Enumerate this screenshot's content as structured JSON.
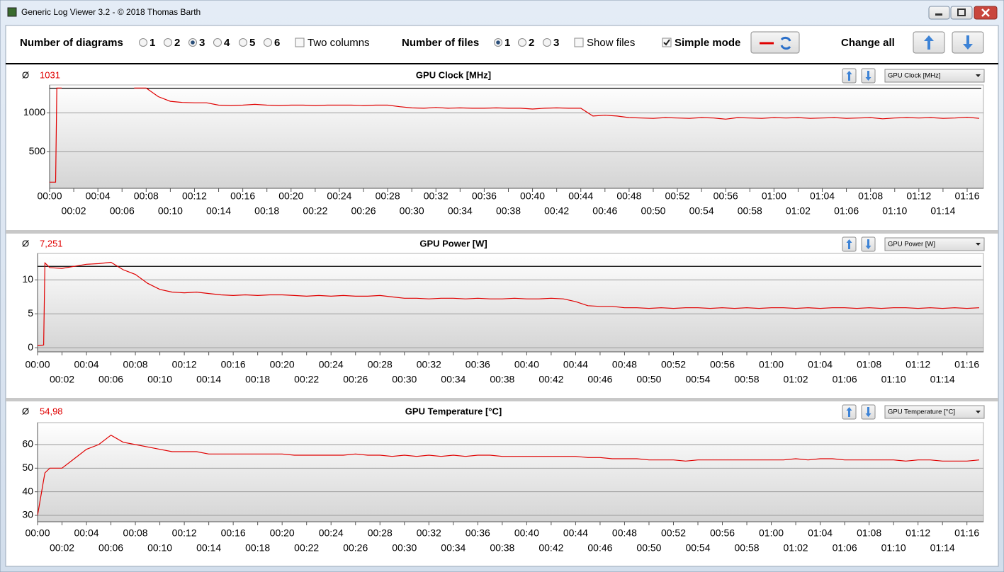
{
  "window": {
    "title": "Generic Log Viewer 3.2 - © 2018 Thomas Barth"
  },
  "toolbar": {
    "diagrams": {
      "label": "Number of diagrams",
      "options": [
        "1",
        "2",
        "3",
        "4",
        "5",
        "6"
      ],
      "selected": 2
    },
    "two_columns": {
      "label": "Two columns",
      "checked": false
    },
    "files": {
      "label": "Number of files",
      "options": [
        "1",
        "2",
        "3"
      ],
      "selected": 0
    },
    "show_files": {
      "label": "Show files",
      "checked": false
    },
    "simple_mode": {
      "label": "Simple mode",
      "checked": true
    },
    "change_all": "Change all"
  },
  "chart_data": [
    {
      "type": "line",
      "title": "GPU Clock [MHz]",
      "average_symbol": "Ø",
      "average": "1031",
      "selector": "GPU Clock [MHz]",
      "color": "#e00000",
      "x": [
        0,
        0.5,
        0.6,
        1,
        2,
        3,
        4,
        5,
        6,
        7,
        8,
        9,
        10,
        11,
        12,
        13,
        14,
        15,
        16,
        17,
        18,
        19,
        20,
        21,
        22,
        23,
        24,
        25,
        26,
        27,
        28,
        29,
        30,
        31,
        32,
        33,
        34,
        35,
        36,
        37,
        38,
        39,
        40,
        41,
        42,
        43,
        44,
        45,
        46,
        47,
        48,
        49,
        50,
        51,
        52,
        53,
        54,
        55,
        56,
        57,
        58,
        59,
        60,
        61,
        62,
        63,
        64,
        65,
        66,
        67,
        68,
        69,
        70,
        71,
        72,
        73,
        74,
        75,
        76,
        77
      ],
      "values": [
        109,
        109,
        1320,
        1320,
        null,
        null,
        null,
        null,
        null,
        1320,
        1320,
        1210,
        1150,
        1135,
        1130,
        1130,
        1100,
        1095,
        1100,
        1110,
        1100,
        1095,
        1100,
        1100,
        1095,
        1100,
        1100,
        1100,
        1095,
        1100,
        1100,
        1080,
        1065,
        1060,
        1070,
        1060,
        1065,
        1060,
        1060,
        1065,
        1060,
        1060,
        1050,
        1060,
        1065,
        1060,
        1060,
        960,
        970,
        960,
        940,
        935,
        930,
        940,
        935,
        930,
        940,
        935,
        920,
        940,
        935,
        930,
        940,
        935,
        940,
        930,
        935,
        940,
        930,
        935,
        940,
        925,
        935,
        940,
        935,
        940,
        930,
        935,
        945,
        930
      ],
      "reference_line": {
        "value": 1318,
        "color": "#000000"
      },
      "xlim": [
        0,
        77.35
      ],
      "ylim": [
        30,
        1360
      ],
      "yticks": [
        500,
        1000
      ],
      "grid": true,
      "xticks": [
        {
          "value": 0,
          "label": "00:00"
        },
        {
          "value": 2,
          "label": "00:02"
        },
        {
          "value": 4,
          "label": "00:04"
        },
        {
          "value": 6,
          "label": "00:06"
        },
        {
          "value": 8,
          "label": "00:08"
        },
        {
          "value": 10,
          "label": "00:10"
        },
        {
          "value": 12,
          "label": "00:12"
        },
        {
          "value": 14,
          "label": "00:14"
        },
        {
          "value": 16,
          "label": "00:16"
        },
        {
          "value": 18,
          "label": "00:18"
        },
        {
          "value": 20,
          "label": "00:20"
        },
        {
          "value": 22,
          "label": "00:22"
        },
        {
          "value": 24,
          "label": "00:24"
        },
        {
          "value": 26,
          "label": "00:26"
        },
        {
          "value": 28,
          "label": "00:28"
        },
        {
          "value": 30,
          "label": "00:30"
        },
        {
          "value": 32,
          "label": "00:32"
        },
        {
          "value": 34,
          "label": "00:34"
        },
        {
          "value": 36,
          "label": "00:36"
        },
        {
          "value": 38,
          "label": "00:38"
        },
        {
          "value": 40,
          "label": "00:40"
        },
        {
          "value": 42,
          "label": "00:42"
        },
        {
          "value": 44,
          "label": "00:44"
        },
        {
          "value": 46,
          "label": "00:46"
        },
        {
          "value": 48,
          "label": "00:48"
        },
        {
          "value": 50,
          "label": "00:50"
        },
        {
          "value": 52,
          "label": "00:52"
        },
        {
          "value": 54,
          "label": "00:54"
        },
        {
          "value": 56,
          "label": "00:56"
        },
        {
          "value": 58,
          "label": "00:58"
        },
        {
          "value": 60,
          "label": "01:00"
        },
        {
          "value": 62,
          "label": "01:02"
        },
        {
          "value": 64,
          "label": "01:04"
        },
        {
          "value": 66,
          "label": "01:06"
        },
        {
          "value": 68,
          "label": "01:08"
        },
        {
          "value": 70,
          "label": "01:10"
        },
        {
          "value": 72,
          "label": "01:12"
        },
        {
          "value": 74,
          "label": "01:14"
        },
        {
          "value": 76,
          "label": "01:16"
        }
      ]
    },
    {
      "type": "line",
      "title": "GPU Power [W]",
      "average_symbol": "Ø",
      "average": "7,251",
      "selector": "GPU Power [W]",
      "color": "#e00000",
      "x": [
        0,
        0.5,
        0.6,
        1,
        2,
        3,
        4,
        5,
        6,
        7,
        8,
        9,
        10,
        11,
        12,
        13,
        14,
        15,
        16,
        17,
        18,
        19,
        20,
        21,
        22,
        23,
        24,
        25,
        26,
        27,
        28,
        29,
        30,
        31,
        32,
        33,
        34,
        35,
        36,
        37,
        38,
        39,
        40,
        41,
        42,
        43,
        44,
        45,
        46,
        47,
        48,
        49,
        50,
        51,
        52,
        53,
        54,
        55,
        56,
        57,
        58,
        59,
        60,
        61,
        62,
        63,
        64,
        65,
        66,
        67,
        68,
        69,
        70,
        71,
        72,
        73,
        74,
        75,
        76,
        77
      ],
      "values": [
        0.3,
        0.4,
        12.5,
        11.8,
        11.7,
        12,
        12.3,
        12.4,
        12.6,
        11.5,
        10.8,
        9.5,
        8.6,
        8.2,
        8.1,
        8.2,
        8.0,
        7.8,
        7.7,
        7.8,
        7.7,
        7.8,
        7.8,
        7.7,
        7.6,
        7.7,
        7.6,
        7.7,
        7.6,
        7.6,
        7.7,
        7.5,
        7.3,
        7.3,
        7.2,
        7.3,
        7.3,
        7.2,
        7.3,
        7.2,
        7.2,
        7.3,
        7.2,
        7.2,
        7.3,
        7.2,
        6.8,
        6.2,
        6.1,
        6.1,
        5.9,
        5.9,
        5.8,
        5.9,
        5.8,
        5.9,
        5.9,
        5.8,
        5.9,
        5.8,
        5.9,
        5.8,
        5.9,
        5.9,
        5.8,
        5.9,
        5.8,
        5.9,
        5.9,
        5.8,
        5.9,
        5.8,
        5.9,
        5.9,
        5.8,
        5.9,
        5.8,
        5.9,
        5.8,
        5.9
      ],
      "reference_line": {
        "value": 12,
        "color": "#000000"
      },
      "xlim": [
        0,
        77.35
      ],
      "ylim": [
        -0.6,
        13.9
      ],
      "yticks": [
        0,
        5,
        10
      ],
      "grid": true,
      "xticks": [
        {
          "value": 0,
          "label": "00:00"
        },
        {
          "value": 2,
          "label": "00:02"
        },
        {
          "value": 4,
          "label": "00:04"
        },
        {
          "value": 6,
          "label": "00:06"
        },
        {
          "value": 8,
          "label": "00:08"
        },
        {
          "value": 10,
          "label": "00:10"
        },
        {
          "value": 12,
          "label": "00:12"
        },
        {
          "value": 14,
          "label": "00:14"
        },
        {
          "value": 16,
          "label": "00:16"
        },
        {
          "value": 18,
          "label": "00:18"
        },
        {
          "value": 20,
          "label": "00:20"
        },
        {
          "value": 22,
          "label": "00:22"
        },
        {
          "value": 24,
          "label": "00:24"
        },
        {
          "value": 26,
          "label": "00:26"
        },
        {
          "value": 28,
          "label": "00:28"
        },
        {
          "value": 30,
          "label": "00:30"
        },
        {
          "value": 32,
          "label": "00:32"
        },
        {
          "value": 34,
          "label": "00:34"
        },
        {
          "value": 36,
          "label": "00:36"
        },
        {
          "value": 38,
          "label": "00:38"
        },
        {
          "value": 40,
          "label": "00:40"
        },
        {
          "value": 42,
          "label": "00:42"
        },
        {
          "value": 44,
          "label": "00:44"
        },
        {
          "value": 46,
          "label": "00:46"
        },
        {
          "value": 48,
          "label": "00:48"
        },
        {
          "value": 50,
          "label": "00:50"
        },
        {
          "value": 52,
          "label": "00:52"
        },
        {
          "value": 54,
          "label": "00:54"
        },
        {
          "value": 56,
          "label": "00:56"
        },
        {
          "value": 58,
          "label": "00:58"
        },
        {
          "value": 60,
          "label": "01:00"
        },
        {
          "value": 62,
          "label": "01:02"
        },
        {
          "value": 64,
          "label": "01:04"
        },
        {
          "value": 66,
          "label": "01:06"
        },
        {
          "value": 68,
          "label": "01:08"
        },
        {
          "value": 70,
          "label": "01:10"
        },
        {
          "value": 72,
          "label": "01:12"
        },
        {
          "value": 74,
          "label": "01:14"
        },
        {
          "value": 76,
          "label": "01:16"
        }
      ]
    },
    {
      "type": "line",
      "title": "GPU Temperature [°C]",
      "average_symbol": "Ø",
      "average": "54,98",
      "selector": "GPU Temperature [°C]",
      "color": "#e00000",
      "x": [
        0,
        0.5,
        0.6,
        1,
        2,
        3,
        4,
        5,
        6,
        7,
        8,
        9,
        10,
        11,
        12,
        13,
        14,
        15,
        16,
        17,
        18,
        19,
        20,
        21,
        22,
        23,
        24,
        25,
        26,
        27,
        28,
        29,
        30,
        31,
        32,
        33,
        34,
        35,
        36,
        37,
        38,
        39,
        40,
        41,
        42,
        43,
        44,
        45,
        46,
        47,
        48,
        49,
        50,
        51,
        52,
        53,
        54,
        55,
        56,
        57,
        58,
        59,
        60,
        61,
        62,
        63,
        64,
        65,
        66,
        67,
        68,
        69,
        70,
        71,
        72,
        73,
        74,
        75,
        76,
        77
      ],
      "values": [
        30,
        45,
        48,
        50,
        50,
        54,
        58,
        60,
        64,
        61,
        60,
        59,
        58,
        57,
        57,
        57,
        56,
        56,
        56,
        56,
        56,
        56,
        56,
        55.5,
        55.5,
        55.5,
        55.5,
        55.5,
        56,
        55.5,
        55.5,
        55,
        55.5,
        55,
        55.5,
        55,
        55.5,
        55,
        55.5,
        55.5,
        55,
        55,
        55,
        55,
        55,
        55,
        55,
        54.5,
        54.5,
        54,
        54,
        54,
        53.5,
        53.5,
        53.5,
        53,
        53.5,
        53.5,
        53.5,
        53.5,
        53.5,
        53.5,
        53.5,
        53.5,
        54,
        53.5,
        54,
        54,
        53.5,
        53.5,
        53.5,
        53.5,
        53.5,
        53,
        53.5,
        53.5,
        53,
        53,
        53,
        53.5
      ],
      "xlim": [
        0,
        77.35
      ],
      "ylim": [
        27.3,
        69.3
      ],
      "yticks": [
        30,
        40,
        50,
        60
      ],
      "grid": true,
      "xticks": [
        {
          "value": 0,
          "label": "00:00"
        },
        {
          "value": 2,
          "label": "00:02"
        },
        {
          "value": 4,
          "label": "00:04"
        },
        {
          "value": 6,
          "label": "00:06"
        },
        {
          "value": 8,
          "label": "00:08"
        },
        {
          "value": 10,
          "label": "00:10"
        },
        {
          "value": 12,
          "label": "00:12"
        },
        {
          "value": 14,
          "label": "00:14"
        },
        {
          "value": 16,
          "label": "00:16"
        },
        {
          "value": 18,
          "label": "00:18"
        },
        {
          "value": 20,
          "label": "00:20"
        },
        {
          "value": 22,
          "label": "00:22"
        },
        {
          "value": 24,
          "label": "00:24"
        },
        {
          "value": 26,
          "label": "00:26"
        },
        {
          "value": 28,
          "label": "00:28"
        },
        {
          "value": 30,
          "label": "00:30"
        },
        {
          "value": 32,
          "label": "00:32"
        },
        {
          "value": 34,
          "label": "00:34"
        },
        {
          "value": 36,
          "label": "00:36"
        },
        {
          "value": 38,
          "label": "00:38"
        },
        {
          "value": 40,
          "label": "00:40"
        },
        {
          "value": 42,
          "label": "00:42"
        },
        {
          "value": 44,
          "label": "00:44"
        },
        {
          "value": 46,
          "label": "00:46"
        },
        {
          "value": 48,
          "label": "00:48"
        },
        {
          "value": 50,
          "label": "00:50"
        },
        {
          "value": 52,
          "label": "00:52"
        },
        {
          "value": 54,
          "label": "00:54"
        },
        {
          "value": 56,
          "label": "00:56"
        },
        {
          "value": 58,
          "label": "00:58"
        },
        {
          "value": 60,
          "label": "01:00"
        },
        {
          "value": 62,
          "label": "01:02"
        },
        {
          "value": 64,
          "label": "01:04"
        },
        {
          "value": 66,
          "label": "01:06"
        },
        {
          "value": 68,
          "label": "01:08"
        },
        {
          "value": 70,
          "label": "01:10"
        },
        {
          "value": 72,
          "label": "01:12"
        },
        {
          "value": 74,
          "label": "01:14"
        },
        {
          "value": 76,
          "label": "01:16"
        }
      ]
    }
  ]
}
